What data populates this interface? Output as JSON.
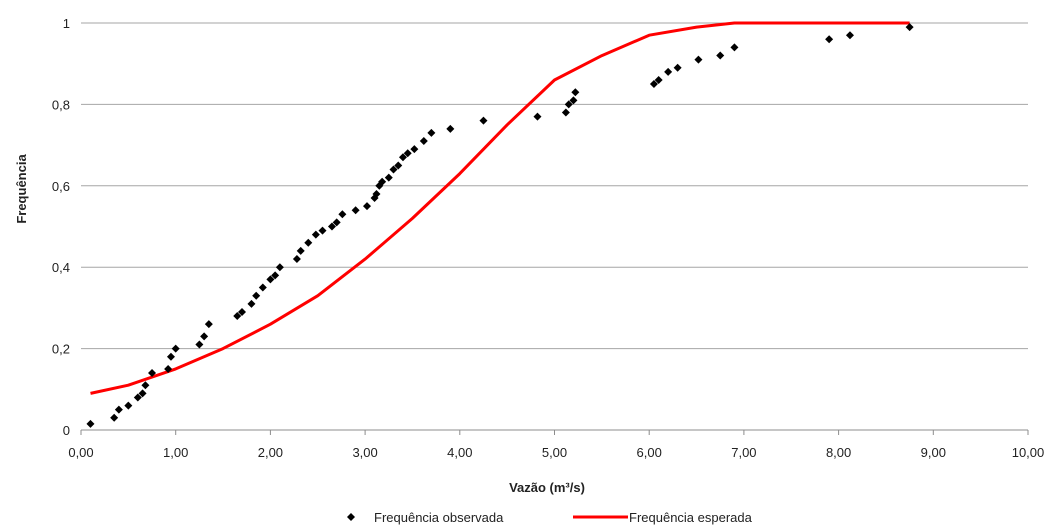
{
  "chart_data": {
    "type": "scatter",
    "xlabel": "Vazão (m³/s)",
    "ylabel": "Frequência",
    "xlim": [
      0,
      10
    ],
    "ylim": [
      0,
      1
    ],
    "x_ticks": [
      "0,00",
      "1,00",
      "2,00",
      "3,00",
      "4,00",
      "5,00",
      "6,00",
      "7,00",
      "8,00",
      "9,00",
      "10,00"
    ],
    "y_ticks": [
      "0",
      "0,2",
      "0,4",
      "0,6",
      "0,8",
      "1"
    ],
    "grid": "horizontal",
    "legend_position": "bottom",
    "series": [
      {
        "name": "Frequência observada",
        "type": "scatter",
        "marker": "diamond",
        "color": "#000000",
        "x": [
          0.1,
          0.35,
          0.4,
          0.5,
          0.6,
          0.65,
          0.68,
          0.75,
          0.92,
          0.95,
          1.0,
          1.25,
          1.3,
          1.35,
          1.65,
          1.7,
          1.8,
          1.85,
          1.92,
          2.0,
          2.05,
          2.1,
          2.28,
          2.32,
          2.4,
          2.48,
          2.55,
          2.65,
          2.7,
          2.76,
          2.9,
          3.02,
          3.1,
          3.12,
          3.15,
          3.18,
          3.25,
          3.3,
          3.35,
          3.4,
          3.45,
          3.52,
          3.62,
          3.7,
          3.9,
          4.25,
          4.82,
          5.12,
          5.15,
          5.2,
          5.22,
          6.05,
          6.1,
          6.2,
          6.3,
          6.52,
          6.75,
          6.9,
          7.9,
          8.12,
          8.75
        ],
        "y": [
          0.015,
          0.03,
          0.05,
          0.06,
          0.08,
          0.09,
          0.11,
          0.14,
          0.15,
          0.18,
          0.2,
          0.21,
          0.23,
          0.26,
          0.28,
          0.29,
          0.31,
          0.33,
          0.35,
          0.37,
          0.38,
          0.4,
          0.42,
          0.44,
          0.46,
          0.48,
          0.49,
          0.5,
          0.51,
          0.53,
          0.54,
          0.55,
          0.57,
          0.58,
          0.6,
          0.61,
          0.62,
          0.64,
          0.65,
          0.67,
          0.68,
          0.69,
          0.71,
          0.73,
          0.74,
          0.76,
          0.77,
          0.78,
          0.8,
          0.81,
          0.83,
          0.85,
          0.86,
          0.88,
          0.89,
          0.91,
          0.92,
          0.94,
          0.96,
          0.97,
          0.99
        ]
      },
      {
        "name": "Frequência esperada",
        "type": "line",
        "color": "#ff0000",
        "x": [
          0.1,
          0.5,
          1.0,
          1.5,
          2.0,
          2.5,
          3.0,
          3.5,
          4.0,
          4.5,
          5.0,
          5.5,
          6.0,
          6.5,
          6.9,
          7.5,
          8.0,
          8.5,
          8.75
        ],
        "y": [
          0.09,
          0.11,
          0.15,
          0.2,
          0.26,
          0.33,
          0.42,
          0.52,
          0.63,
          0.75,
          0.86,
          0.92,
          0.97,
          0.99,
          1.0,
          1.0,
          1.0,
          1.0,
          1.0
        ]
      }
    ]
  }
}
